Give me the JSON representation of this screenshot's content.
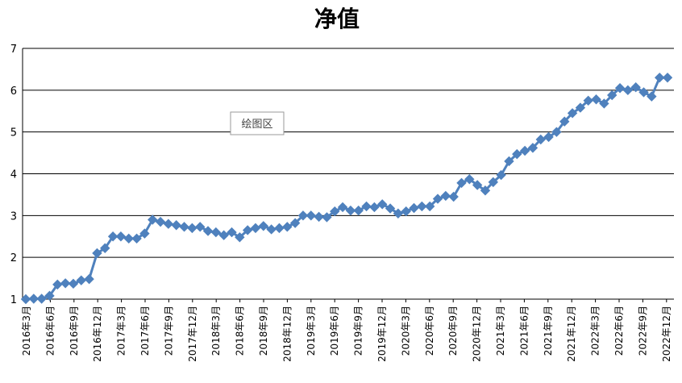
{
  "chart_data": {
    "type": "line",
    "title": "净值",
    "xlabel": "",
    "ylabel": "",
    "ylim": [
      1,
      7
    ],
    "yticks": [
      "1",
      "2",
      "3",
      "4",
      "5",
      "6",
      "7"
    ],
    "grid": true,
    "legend": "none",
    "x_tick_labels": [
      "2016年3月",
      "2016年6月",
      "2016年9月",
      "2016年12月",
      "2017年3月",
      "2017年6月",
      "2017年9月",
      "2017年12月",
      "2018年3月",
      "2018年6月",
      "2018年9月",
      "2018年12月",
      "2019年3月",
      "2019年6月",
      "2019年9月",
      "2019年12月",
      "2020年3月",
      "2020年6月",
      "2020年9月",
      "2020年12月",
      "2021年3月",
      "2021年6月",
      "2021年9月",
      "2021年12月",
      "2022年3月",
      "2022年6月",
      "2022年9月",
      "2022年12月"
    ],
    "series": [
      {
        "color": "#4F81BD",
        "marker": "diamond",
        "values": [
          1.0,
          1.01,
          1.01,
          1.08,
          1.35,
          1.38,
          1.37,
          1.45,
          1.48,
          2.1,
          2.22,
          2.5,
          2.5,
          2.45,
          2.45,
          2.57,
          2.9,
          2.85,
          2.8,
          2.77,
          2.73,
          2.7,
          2.73,
          2.63,
          2.6,
          2.53,
          2.6,
          2.48,
          2.65,
          2.7,
          2.75,
          2.67,
          2.7,
          2.73,
          2.82,
          3.0,
          3.0,
          2.97,
          2.96,
          3.1,
          3.2,
          3.12,
          3.12,
          3.22,
          3.2,
          3.27,
          3.17,
          3.05,
          3.1,
          3.18,
          3.22,
          3.22,
          3.4,
          3.47,
          3.45,
          3.78,
          3.87,
          3.73,
          3.6,
          3.8,
          3.97,
          4.3,
          4.47,
          4.55,
          4.62,
          4.82,
          4.88,
          5.0,
          5.25,
          5.45,
          5.58,
          5.75,
          5.78,
          5.68,
          5.88,
          6.05,
          6.0,
          6.07,
          5.95,
          5.85,
          6.3,
          6.3
        ]
      }
    ],
    "annotation": "绘图区"
  }
}
